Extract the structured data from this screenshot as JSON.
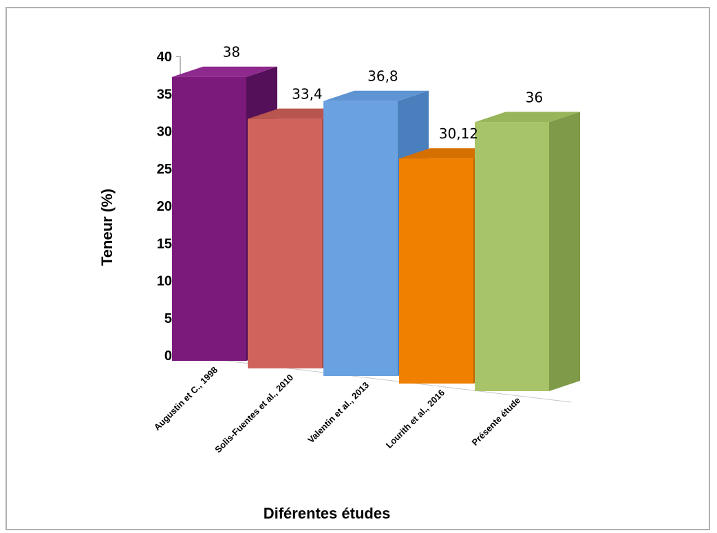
{
  "chart_data": {
    "type": "bar",
    "style": "3d-columns",
    "categories": [
      "Augustin et C., 1998",
      "Solis-Fuentes et al., 2010",
      "Valentin et al., 2013",
      "Lourith et al., 2016",
      "Présente étude"
    ],
    "values": [
      38,
      33.4,
      36.8,
      30.12,
      36
    ],
    "data_labels": [
      "38",
      "33,4",
      "36,8",
      "30,12",
      "36"
    ],
    "xlabel": "Diférentes études",
    "ylabel": "Teneur (%)",
    "ylim": [
      0,
      40
    ],
    "yticks": [
      0,
      5,
      10,
      15,
      20,
      25,
      30,
      35,
      40
    ],
    "grid": false,
    "legend": "none",
    "colors": [
      {
        "front": "#7b1a7b",
        "side": "#55105a",
        "top": "#8e2a8e"
      },
      {
        "front": "#d0645c",
        "side": "#a84c46",
        "top": "#b8554e"
      },
      {
        "front": "#6aa1e0",
        "side": "#4a7fbd",
        "top": "#5f94d3"
      },
      {
        "front": "#f08000",
        "side": "#c16500",
        "top": "#d57000"
      },
      {
        "front": "#a8c468",
        "side": "#7f9a48",
        "top": "#98b55a"
      }
    ]
  }
}
